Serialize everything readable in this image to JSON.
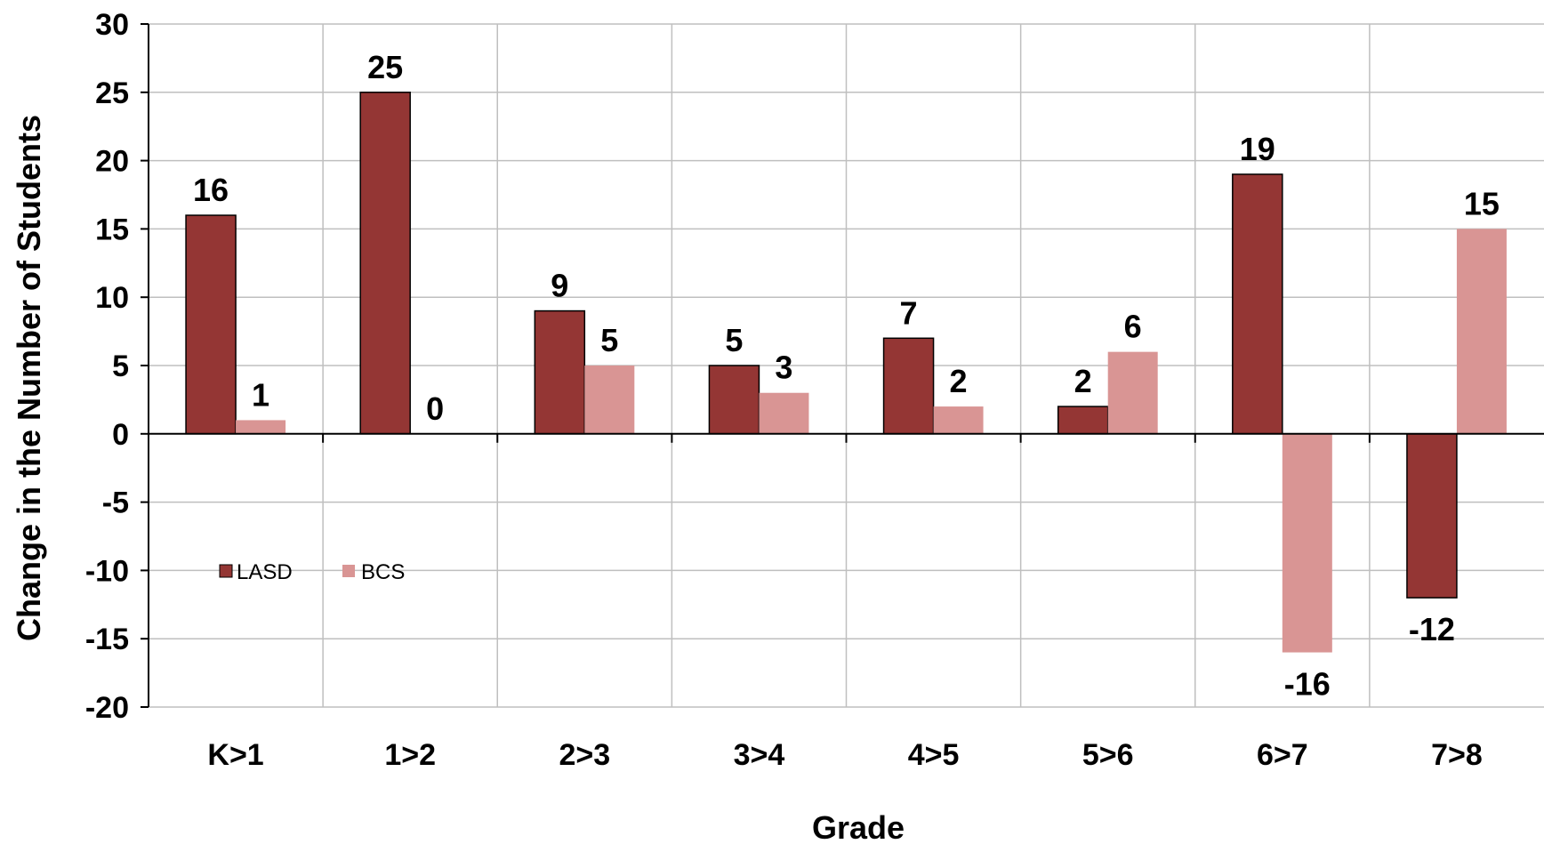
{
  "chart_data": {
    "type": "bar",
    "title": "",
    "xlabel": "Grade",
    "ylabel": "Change in the Number of Students",
    "ylim": [
      -20,
      30
    ],
    "yticks": [
      30,
      25,
      20,
      15,
      10,
      5,
      0,
      -5,
      -10,
      -15,
      -20
    ],
    "categories": [
      "K>1",
      "1>2",
      "2>3",
      "3>4",
      "4>5",
      "5>6",
      "6>7",
      "7>8"
    ],
    "series": [
      {
        "name": "LASD",
        "color": "#943634",
        "values": [
          16,
          25,
          9,
          5,
          7,
          2,
          19,
          -12
        ]
      },
      {
        "name": "BCS",
        "color": "#d99594",
        "values": [
          1,
          0,
          5,
          3,
          2,
          6,
          -16,
          15
        ]
      }
    ],
    "grid": true,
    "legend_position": "lower-left"
  }
}
